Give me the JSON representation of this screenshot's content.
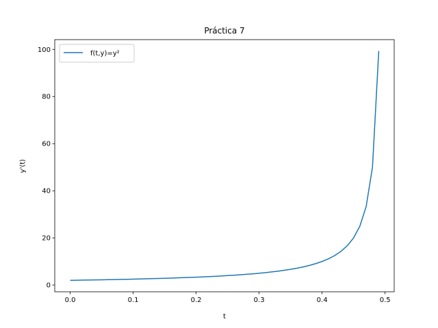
{
  "chart_data": {
    "type": "line",
    "title": "Práctica 7",
    "xlabel": "t",
    "ylabel": "y'(t)",
    "xlim": [
      -0.0245,
      0.5145
    ],
    "ylim": [
      -2.87,
      104.14
    ],
    "xticks": [
      0.0,
      0.1,
      0.2,
      0.3,
      0.4,
      0.5
    ],
    "xtick_labels": [
      "0.0",
      "0.1",
      "0.2",
      "0.3",
      "0.4",
      "0.5"
    ],
    "yticks": [
      0,
      20,
      40,
      60,
      80,
      100
    ],
    "ytick_labels": [
      "0",
      "20",
      "40",
      "60",
      "80",
      "100"
    ],
    "grid": false,
    "legend_position": "top-left",
    "series": [
      {
        "name": "f(t,y)=y²",
        "color": "#1f77b4",
        "x": [
          0.0,
          0.01,
          0.02,
          0.03,
          0.04,
          0.05,
          0.06,
          0.07,
          0.08,
          0.09,
          0.1,
          0.11,
          0.12,
          0.13,
          0.14,
          0.15,
          0.16,
          0.17,
          0.18,
          0.19,
          0.2,
          0.21,
          0.22,
          0.23,
          0.24,
          0.25,
          0.26,
          0.27,
          0.28,
          0.29,
          0.3,
          0.31,
          0.32,
          0.33,
          0.34,
          0.35,
          0.36,
          0.37,
          0.38,
          0.39,
          0.4,
          0.41,
          0.42,
          0.43,
          0.44,
          0.45,
          0.46,
          0.47,
          0.48,
          0.49
        ],
        "y": [
          2.0,
          2.04,
          2.08,
          2.13,
          2.17,
          2.22,
          2.27,
          2.33,
          2.38,
          2.44,
          2.5,
          2.56,
          2.63,
          2.7,
          2.78,
          2.86,
          2.94,
          3.03,
          3.13,
          3.23,
          3.33,
          3.45,
          3.57,
          3.7,
          3.85,
          4.0,
          4.17,
          4.35,
          4.55,
          4.76,
          5.0,
          5.26,
          5.56,
          5.88,
          6.25,
          6.67,
          7.14,
          7.69,
          8.33,
          9.09,
          10.0,
          11.11,
          12.5,
          14.29,
          16.67,
          20.0,
          25.0,
          33.33,
          50.0,
          99.33
        ]
      }
    ]
  }
}
